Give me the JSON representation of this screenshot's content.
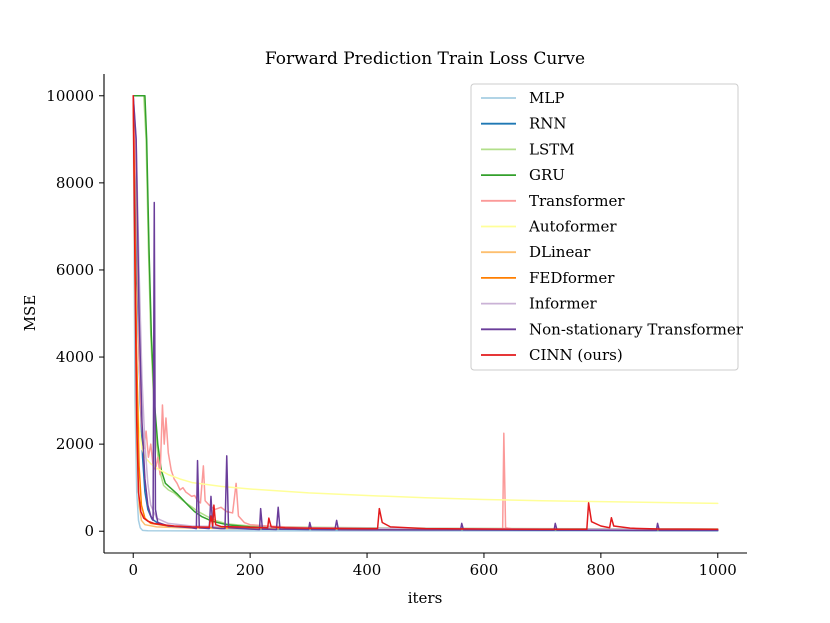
{
  "chart_data": {
    "type": "line",
    "title": "Forward Prediction Train Loss Curve",
    "xlabel": "iters",
    "ylabel": "MSE",
    "xlim": [
      -50,
      1050
    ],
    "ylim": [
      -500,
      10500
    ],
    "xticks": [
      0,
      200,
      400,
      600,
      800,
      1000
    ],
    "yticks": [
      0,
      2000,
      4000,
      6000,
      8000,
      10000
    ],
    "legend_position": "top-right",
    "series": [
      {
        "name": "MLP",
        "color": "#a6cee3",
        "points": [
          [
            0,
            10000
          ],
          [
            3,
            3000
          ],
          [
            6,
            900
          ],
          [
            9,
            250
          ],
          [
            12,
            80
          ],
          [
            16,
            20
          ],
          [
            25,
            10
          ],
          [
            100,
            8
          ],
          [
            300,
            8
          ],
          [
            600,
            7
          ],
          [
            1000,
            6
          ]
        ]
      },
      {
        "name": "RNN",
        "color": "#1f78b4",
        "points": [
          [
            0,
            10000
          ],
          [
            4,
            7500
          ],
          [
            8,
            5000
          ],
          [
            12,
            3000
          ],
          [
            16,
            1700
          ],
          [
            20,
            900
          ],
          [
            25,
            500
          ],
          [
            32,
            280
          ],
          [
            45,
            160
          ],
          [
            70,
            100
          ],
          [
            120,
            70
          ],
          [
            200,
            50
          ],
          [
            400,
            35
          ],
          [
            700,
            25
          ],
          [
            1000,
            20
          ]
        ]
      },
      {
        "name": "LSTM",
        "color": "#b2df8a",
        "points": [
          [
            0,
            10000
          ],
          [
            15,
            10000
          ],
          [
            18,
            10000
          ],
          [
            22,
            9000
          ],
          [
            26,
            6500
          ],
          [
            30,
            4500
          ],
          [
            35,
            3000
          ],
          [
            40,
            2000
          ],
          [
            45,
            1400
          ],
          [
            52,
            1050
          ],
          [
            60,
            950
          ],
          [
            70,
            880
          ],
          [
            80,
            760
          ],
          [
            90,
            650
          ],
          [
            100,
            560
          ],
          [
            110,
            460
          ],
          [
            125,
            350
          ],
          [
            140,
            250
          ],
          [
            160,
            170
          ],
          [
            200,
            120
          ],
          [
            300,
            90
          ],
          [
            500,
            70
          ],
          [
            700,
            60
          ],
          [
            1000,
            50
          ]
        ]
      },
      {
        "name": "GRU",
        "color": "#33a02c",
        "points": [
          [
            0,
            10000
          ],
          [
            20,
            10000
          ],
          [
            23,
            9000
          ],
          [
            27,
            6500
          ],
          [
            31,
            4500
          ],
          [
            36,
            3000
          ],
          [
            42,
            2000
          ],
          [
            48,
            1400
          ],
          [
            55,
            1100
          ],
          [
            65,
            980
          ],
          [
            75,
            860
          ],
          [
            85,
            720
          ],
          [
            95,
            580
          ],
          [
            105,
            450
          ],
          [
            118,
            330
          ],
          [
            135,
            230
          ],
          [
            160,
            150
          ],
          [
            200,
            100
          ],
          [
            300,
            70
          ],
          [
            500,
            55
          ],
          [
            1000,
            40
          ]
        ]
      },
      {
        "name": "Transformer",
        "color": "#fb9a99",
        "points": [
          [
            0,
            10000
          ],
          [
            5,
            8000
          ],
          [
            10,
            4000
          ],
          [
            14,
            2500
          ],
          [
            18,
            1900
          ],
          [
            22,
            2300
          ],
          [
            26,
            1700
          ],
          [
            30,
            2000
          ],
          [
            34,
            1500
          ],
          [
            38,
            1400
          ],
          [
            42,
            1700
          ],
          [
            46,
            1300
          ],
          [
            50,
            2900
          ],
          [
            53,
            2000
          ],
          [
            56,
            2600
          ],
          [
            60,
            1800
          ],
          [
            65,
            1400
          ],
          [
            70,
            1200
          ],
          [
            75,
            1100
          ],
          [
            80,
            950
          ],
          [
            85,
            1000
          ],
          [
            90,
            900
          ],
          [
            95,
            850
          ],
          [
            100,
            800
          ],
          [
            105,
            820
          ],
          [
            110,
            700
          ],
          [
            115,
            650
          ],
          [
            120,
            1500
          ],
          [
            123,
            700
          ],
          [
            130,
            600
          ],
          [
            140,
            500
          ],
          [
            150,
            550
          ],
          [
            160,
            450
          ],
          [
            170,
            420
          ],
          [
            176,
            1100
          ],
          [
            180,
            350
          ],
          [
            190,
            200
          ],
          [
            200,
            150
          ],
          [
            230,
            120
          ],
          [
            260,
            100
          ],
          [
            300,
            80
          ],
          [
            350,
            70
          ],
          [
            400,
            60
          ],
          [
            500,
            50
          ],
          [
            600,
            50
          ],
          [
            632,
            60
          ],
          [
            634,
            2250
          ],
          [
            637,
            80
          ],
          [
            650,
            50
          ],
          [
            700,
            45
          ],
          [
            800,
            40
          ],
          [
            900,
            35
          ],
          [
            1000,
            35
          ]
        ]
      },
      {
        "name": "Autoformer",
        "color": "#ffff99",
        "points": [
          [
            0,
            10000
          ],
          [
            3,
            5500
          ],
          [
            6,
            3500
          ],
          [
            10,
            2400
          ],
          [
            15,
            1900
          ],
          [
            20,
            1700
          ],
          [
            30,
            1550
          ],
          [
            40,
            1450
          ],
          [
            60,
            1300
          ],
          [
            80,
            1200
          ],
          [
            100,
            1120
          ],
          [
            150,
            1030
          ],
          [
            200,
            970
          ],
          [
            300,
            880
          ],
          [
            400,
            820
          ],
          [
            500,
            770
          ],
          [
            600,
            730
          ],
          [
            700,
            700
          ],
          [
            800,
            680
          ],
          [
            900,
            660
          ],
          [
            1000,
            640
          ]
        ]
      },
      {
        "name": "DLinear",
        "color": "#fdbf6f",
        "points": [
          [
            0,
            10000
          ],
          [
            3,
            6000
          ],
          [
            6,
            2000
          ],
          [
            10,
            600
          ],
          [
            14,
            250
          ],
          [
            20,
            150
          ],
          [
            40,
            100
          ],
          [
            100,
            70
          ],
          [
            300,
            50
          ],
          [
            600,
            40
          ],
          [
            1000,
            30
          ]
        ]
      },
      {
        "name": "FEDformer",
        "color": "#ff7f00",
        "points": [
          [
            0,
            10000
          ],
          [
            3,
            7000
          ],
          [
            6,
            4000
          ],
          [
            10,
            1500
          ],
          [
            14,
            600
          ],
          [
            20,
            300
          ],
          [
            30,
            180
          ],
          [
            60,
            120
          ],
          [
            120,
            90
          ],
          [
            300,
            60
          ],
          [
            600,
            45
          ],
          [
            1000,
            35
          ]
        ]
      },
      {
        "name": "Informer",
        "color": "#cab2d6",
        "points": [
          [
            0,
            10000
          ],
          [
            5,
            9000
          ],
          [
            10,
            6000
          ],
          [
            15,
            3500
          ],
          [
            20,
            2000
          ],
          [
            25,
            1100
          ],
          [
            30,
            600
          ],
          [
            40,
            300
          ],
          [
            60,
            180
          ],
          [
            100,
            120
          ],
          [
            200,
            90
          ],
          [
            400,
            70
          ],
          [
            700,
            55
          ],
          [
            1000,
            45
          ]
        ]
      },
      {
        "name": "Non-stationary Transformer",
        "color": "#6a3d9a",
        "points": [
          [
            0,
            10000
          ],
          [
            5,
            9000
          ],
          [
            10,
            5000
          ],
          [
            15,
            2500
          ],
          [
            20,
            1200
          ],
          [
            25,
            600
          ],
          [
            30,
            350
          ],
          [
            34,
            250
          ],
          [
            36,
            7550
          ],
          [
            38,
            500
          ],
          [
            42,
            200
          ],
          [
            60,
            120
          ],
          [
            100,
            80
          ],
          [
            108,
            60
          ],
          [
            110,
            1620
          ],
          [
            113,
            80
          ],
          [
            130,
            60
          ],
          [
            133,
            800
          ],
          [
            136,
            80
          ],
          [
            150,
            60
          ],
          [
            157,
            60
          ],
          [
            160,
            1730
          ],
          [
            163,
            80
          ],
          [
            200,
            50
          ],
          [
            216,
            40
          ],
          [
            218,
            520
          ],
          [
            221,
            50
          ],
          [
            245,
            40
          ],
          [
            248,
            550
          ],
          [
            251,
            50
          ],
          [
            300,
            40
          ],
          [
            302,
            200
          ],
          [
            305,
            40
          ],
          [
            345,
            35
          ],
          [
            348,
            250
          ],
          [
            351,
            35
          ],
          [
            400,
            30
          ],
          [
            520,
            30
          ],
          [
            560,
            30
          ],
          [
            562,
            180
          ],
          [
            565,
            30
          ],
          [
            700,
            25
          ],
          [
            720,
            25
          ],
          [
            722,
            180
          ],
          [
            725,
            25
          ],
          [
            895,
            20
          ],
          [
            897,
            180
          ],
          [
            900,
            20
          ],
          [
            1000,
            20
          ]
        ]
      },
      {
        "name": "CINN (ours)",
        "color": "#e31a1c",
        "points": [
          [
            0,
            10000
          ],
          [
            3,
            6000
          ],
          [
            6,
            2500
          ],
          [
            9,
            900
          ],
          [
            13,
            450
          ],
          [
            18,
            300
          ],
          [
            25,
            230
          ],
          [
            35,
            180
          ],
          [
            50,
            150
          ],
          [
            70,
            120
          ],
          [
            100,
            100
          ],
          [
            130,
            90
          ],
          [
            133,
            350
          ],
          [
            136,
            120
          ],
          [
            138,
            600
          ],
          [
            141,
            150
          ],
          [
            150,
            110
          ],
          [
            200,
            90
          ],
          [
            230,
            80
          ],
          [
            232,
            300
          ],
          [
            236,
            100
          ],
          [
            260,
            80
          ],
          [
            300,
            70
          ],
          [
            400,
            60
          ],
          [
            418,
            60
          ],
          [
            421,
            520
          ],
          [
            426,
            200
          ],
          [
            440,
            100
          ],
          [
            500,
            60
          ],
          [
            600,
            50
          ],
          [
            700,
            45
          ],
          [
            776,
            45
          ],
          [
            779,
            650
          ],
          [
            784,
            220
          ],
          [
            800,
            120
          ],
          [
            815,
            80
          ],
          [
            818,
            310
          ],
          [
            822,
            120
          ],
          [
            850,
            70
          ],
          [
            900,
            50
          ],
          [
            1000,
            45
          ]
        ]
      }
    ]
  }
}
